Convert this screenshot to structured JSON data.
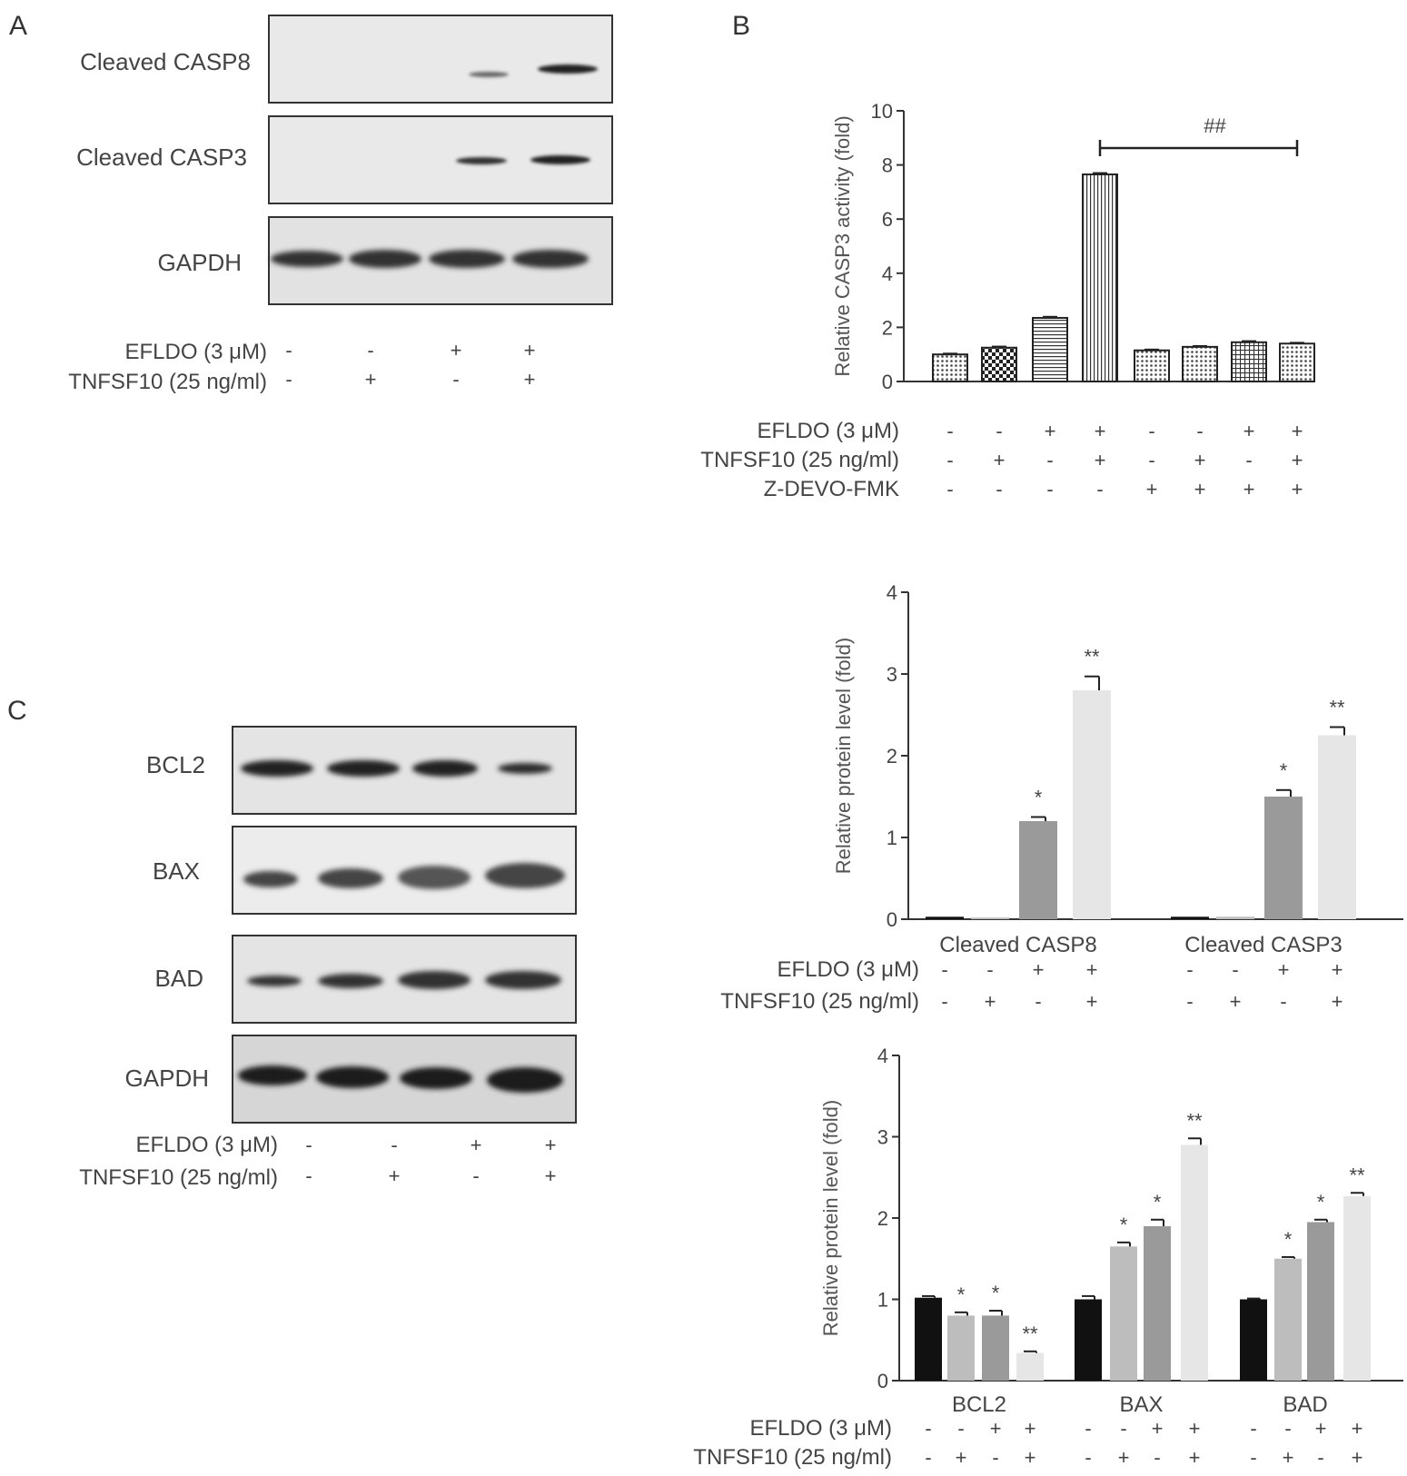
{
  "panels": {
    "A": "A",
    "B": "B",
    "C": "C"
  },
  "blotA": {
    "rows": [
      "Cleaved CASP8",
      "Cleaved CASP3",
      "GAPDH"
    ],
    "conditions": [
      {
        "label": "EFLDO (3 μM)",
        "signs": [
          "-",
          "-",
          "+",
          "+"
        ]
      },
      {
        "label": "TNFSF10 (25 ng/ml)",
        "signs": [
          "-",
          "+",
          "-",
          "+"
        ]
      }
    ]
  },
  "blotC": {
    "rows": [
      "BCL2",
      "BAX",
      "BAD",
      "GAPDH"
    ],
    "conditions": [
      {
        "label": "EFLDO (3 μM)",
        "signs": [
          "-",
          "-",
          "+",
          "+"
        ]
      },
      {
        "label": "TNFSF10 (25 ng/ml)",
        "signs": [
          "-",
          "+",
          "-",
          "+"
        ]
      }
    ]
  },
  "chart_data": [
    {
      "type": "bar",
      "panel": "B",
      "title": "",
      "ylabel": "Relative CASP3 activity (fold)",
      "ylim": [
        0,
        10
      ],
      "yticks": [
        0,
        2,
        4,
        6,
        8,
        10
      ],
      "values": [
        1.0,
        1.25,
        2.35,
        7.65,
        1.15,
        1.28,
        1.45,
        1.4
      ],
      "errors": [
        0.03,
        0.04,
        0.04,
        0.05,
        0.03,
        0.03,
        0.04,
        0.03
      ],
      "patterns": [
        "dots",
        "checker",
        "hlines",
        "vlines",
        "dots",
        "dots",
        "grid",
        "dots"
      ],
      "annotation": {
        "text": "##",
        "from_bar": 4,
        "to_bar": 8
      },
      "conditions": [
        {
          "label": "EFLDO (3 μM)",
          "signs": [
            "-",
            "-",
            "+",
            "+",
            "-",
            "-",
            "+",
            "+"
          ]
        },
        {
          "label": "TNFSF10 (25 ng/ml)",
          "signs": [
            "-",
            "+",
            "-",
            "+",
            "-",
            "+",
            "-",
            "+"
          ]
        },
        {
          "label": "Z-DEVO-FMK",
          "signs": [
            "-",
            "-",
            "-",
            "-",
            "+",
            "+",
            "+",
            "+"
          ]
        }
      ]
    },
    {
      "type": "bar",
      "panel": "C-top",
      "ylabel": "Relative protein level (fold)",
      "ylim": [
        0,
        4
      ],
      "yticks": [
        0,
        1,
        2,
        3,
        4
      ],
      "categories": [
        "Cleaved CASP8",
        "Cleaved CASP3"
      ],
      "series": [
        {
          "values": [
            0.03,
            0.03
          ],
          "errors": [
            0,
            0
          ],
          "sig": [
            "",
            ""
          ],
          "color": "#111111"
        },
        {
          "values": [
            0.02,
            0.03
          ],
          "errors": [
            0,
            0
          ],
          "sig": [
            "",
            ""
          ],
          "color": "#bdbdbd"
        },
        {
          "values": [
            1.2,
            1.5
          ],
          "errors": [
            0.05,
            0.08
          ],
          "sig": [
            "*",
            "*"
          ],
          "color": "#9a9a9a"
        },
        {
          "values": [
            2.8,
            2.25
          ],
          "errors": [
            0.17,
            0.1
          ],
          "sig": [
            "**",
            "**"
          ],
          "color": "#e6e6e6"
        }
      ],
      "conditions": [
        {
          "label": "EFLDO (3 μM)",
          "signs": [
            "-",
            "-",
            "+",
            "+",
            "-",
            "-",
            "+",
            "+"
          ]
        },
        {
          "label": "TNFSF10 (25 ng/ml)",
          "signs": [
            "-",
            "+",
            "-",
            "+",
            "-",
            "+",
            "-",
            "+"
          ]
        }
      ]
    },
    {
      "type": "bar",
      "panel": "C-bottom",
      "ylabel": "Relative protein level (fold)",
      "ylim": [
        0,
        4
      ],
      "yticks": [
        0,
        1,
        2,
        3,
        4
      ],
      "categories": [
        "BCL2",
        "BAX",
        "BAD"
      ],
      "series": [
        {
          "values": [
            1.02,
            1.0,
            1.0
          ],
          "errors": [
            0.02,
            0.04,
            0.01
          ],
          "sig": [
            "",
            "",
            ""
          ],
          "color": "#111111"
        },
        {
          "values": [
            0.8,
            1.65,
            1.5
          ],
          "errors": [
            0.04,
            0.05,
            0.02
          ],
          "sig": [
            "*",
            "*",
            "*"
          ],
          "color": "#bdbdbd"
        },
        {
          "values": [
            0.8,
            1.9,
            1.95
          ],
          "errors": [
            0.06,
            0.08,
            0.03
          ],
          "sig": [
            "*",
            "*",
            "*"
          ],
          "color": "#9a9a9a"
        },
        {
          "values": [
            0.34,
            2.9,
            2.27
          ],
          "errors": [
            0.02,
            0.08,
            0.04
          ],
          "sig": [
            "**",
            "**",
            "**"
          ],
          "color": "#e6e6e6"
        }
      ],
      "conditions": [
        {
          "label": "EFLDO (3 μM)",
          "signs": [
            "-",
            "-",
            "+",
            "+",
            "-",
            "-",
            "+",
            "+",
            "-",
            "-",
            "+",
            "+"
          ]
        },
        {
          "label": "TNFSF10 (25 ng/ml)",
          "signs": [
            "-",
            "+",
            "-",
            "+",
            "-",
            "+",
            "-",
            "+",
            "-",
            "+",
            "-",
            "+"
          ]
        }
      ]
    }
  ]
}
